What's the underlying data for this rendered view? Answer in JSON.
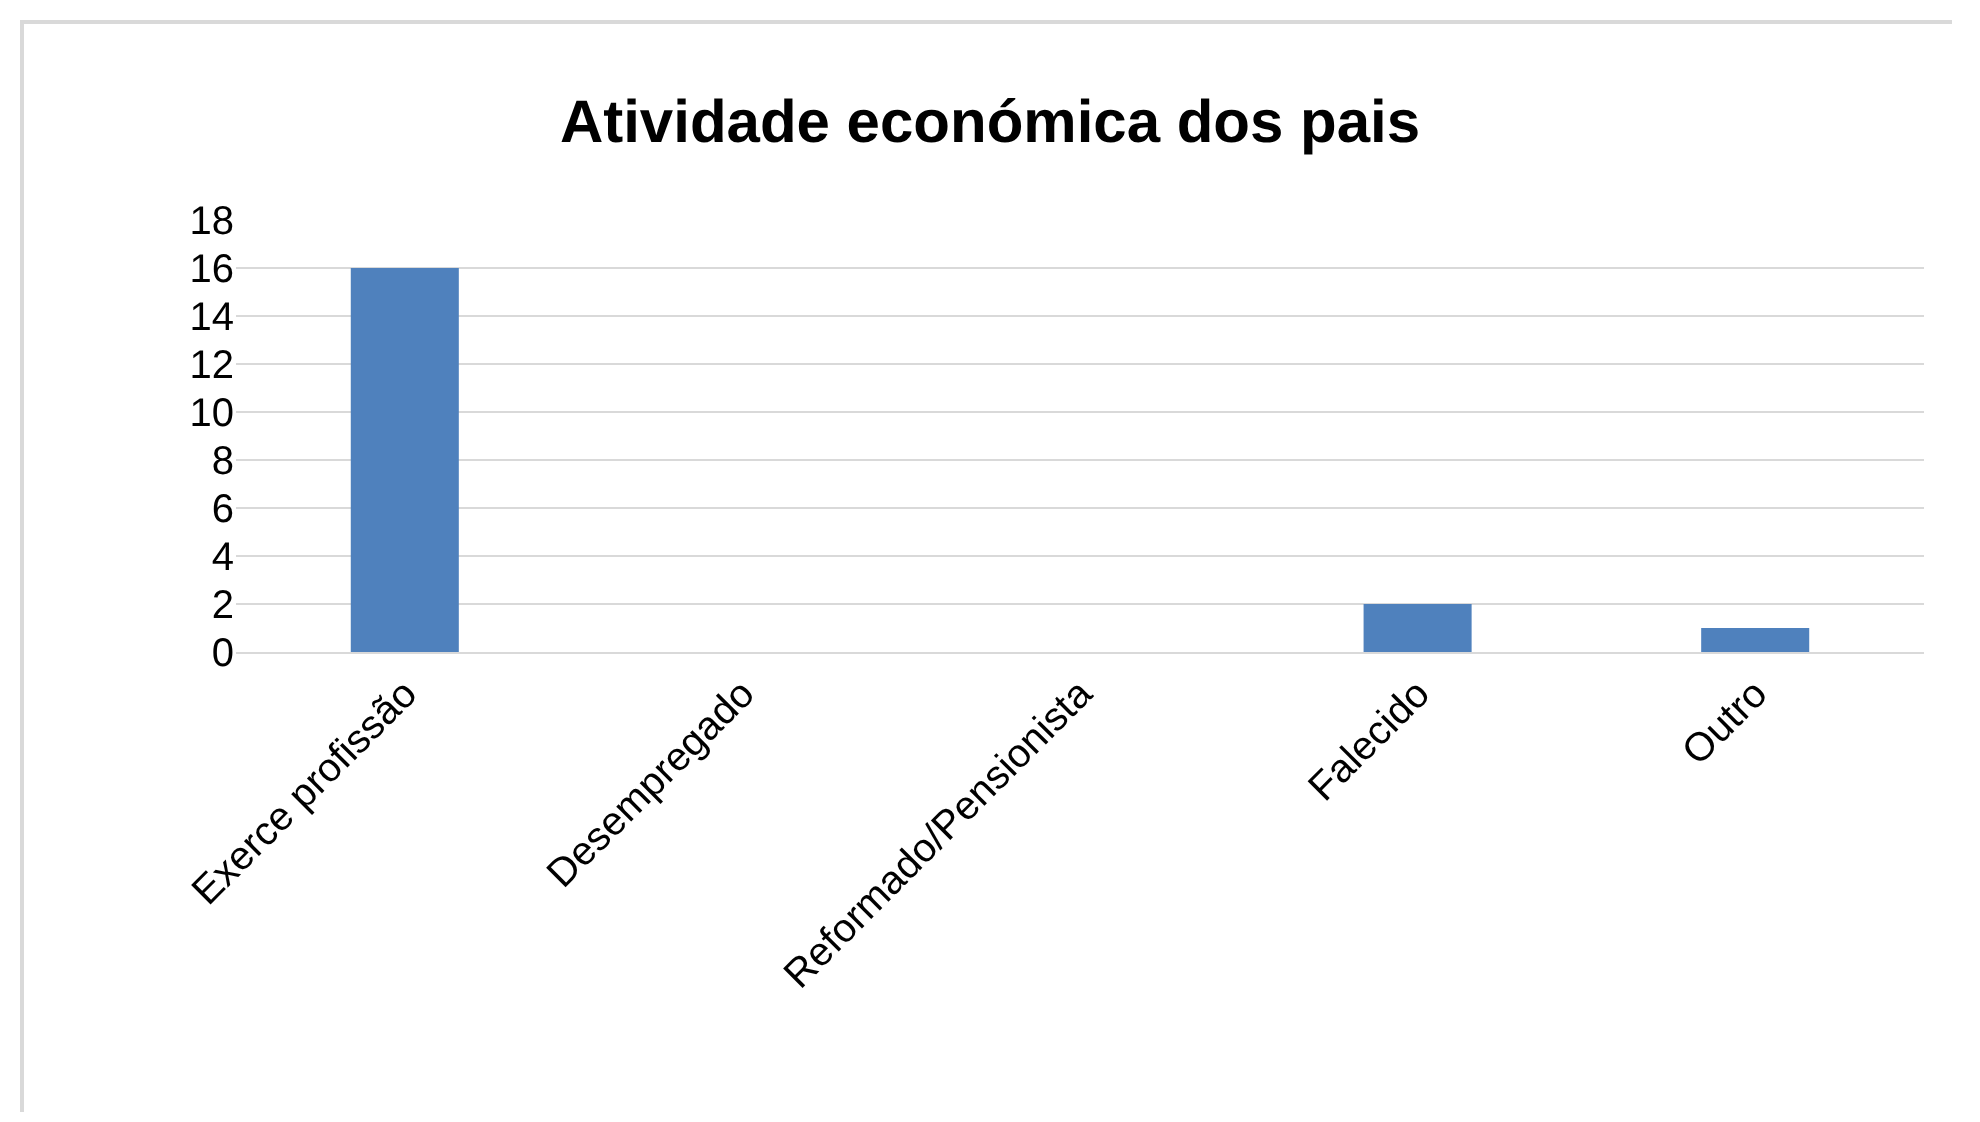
{
  "chart_data": {
    "type": "bar",
    "title": "Atividade económica dos pais",
    "categories": [
      "Exerce profissão",
      "Desempregado",
      "Reformado/Pensionista",
      "Falecido",
      "Outro"
    ],
    "values": [
      16,
      0,
      0,
      2,
      1
    ],
    "color": "#4f81bd",
    "ylim": [
      0,
      18
    ],
    "yticks": [
      0,
      2,
      4,
      6,
      8,
      10,
      12,
      14,
      16,
      18
    ],
    "grid": "y"
  }
}
